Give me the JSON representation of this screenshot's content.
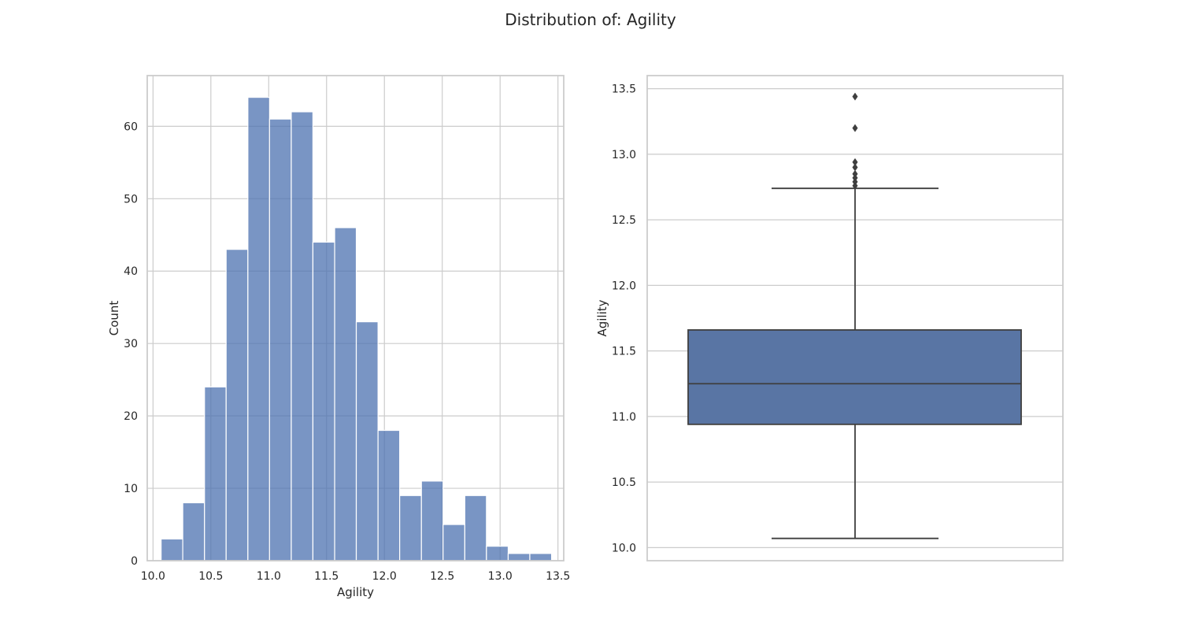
{
  "figure": {
    "suptitle": "Distribution of: Agility"
  },
  "colors": {
    "bar": "#4c72b0",
    "box": "#5975a4",
    "line": "#3f3f3f",
    "grid": "#cccccc"
  },
  "chart_data": [
    {
      "type": "bar",
      "subtype": "histogram",
      "xlabel": "Agility",
      "ylabel": "Count",
      "xlim": [
        9.95,
        13.55
      ],
      "ylim": [
        0,
        67
      ],
      "xticks": [
        "10.0",
        "10.5",
        "11.0",
        "11.5",
        "12.0",
        "12.5",
        "13.0",
        "13.5"
      ],
      "yticks": [
        "0",
        "10",
        "20",
        "30",
        "40",
        "50",
        "60"
      ],
      "grid": true,
      "bin_edges": [
        10.07,
        10.257,
        10.445,
        10.632,
        10.82,
        11.007,
        11.195,
        11.382,
        11.57,
        11.757,
        11.945,
        12.132,
        12.32,
        12.507,
        12.695,
        12.882,
        13.07,
        13.257,
        13.445
      ],
      "values": [
        3,
        8,
        24,
        43,
        64,
        61,
        62,
        44,
        46,
        33,
        18,
        9,
        11,
        5,
        9,
        2,
        1,
        1
      ]
    },
    {
      "type": "box",
      "xlabel": "",
      "ylabel": "Agility",
      "ylim": [
        9.9,
        13.6
      ],
      "yticks": [
        "10.0",
        "10.5",
        "11.0",
        "11.5",
        "12.0",
        "12.5",
        "13.0",
        "13.5"
      ],
      "grid": true,
      "whisker_low": 10.07,
      "q1": 10.94,
      "median": 11.25,
      "q3": 11.66,
      "whisker_high": 12.74,
      "outliers": [
        12.76,
        12.79,
        12.82,
        12.85,
        12.9,
        12.94,
        13.2,
        13.44
      ]
    }
  ]
}
